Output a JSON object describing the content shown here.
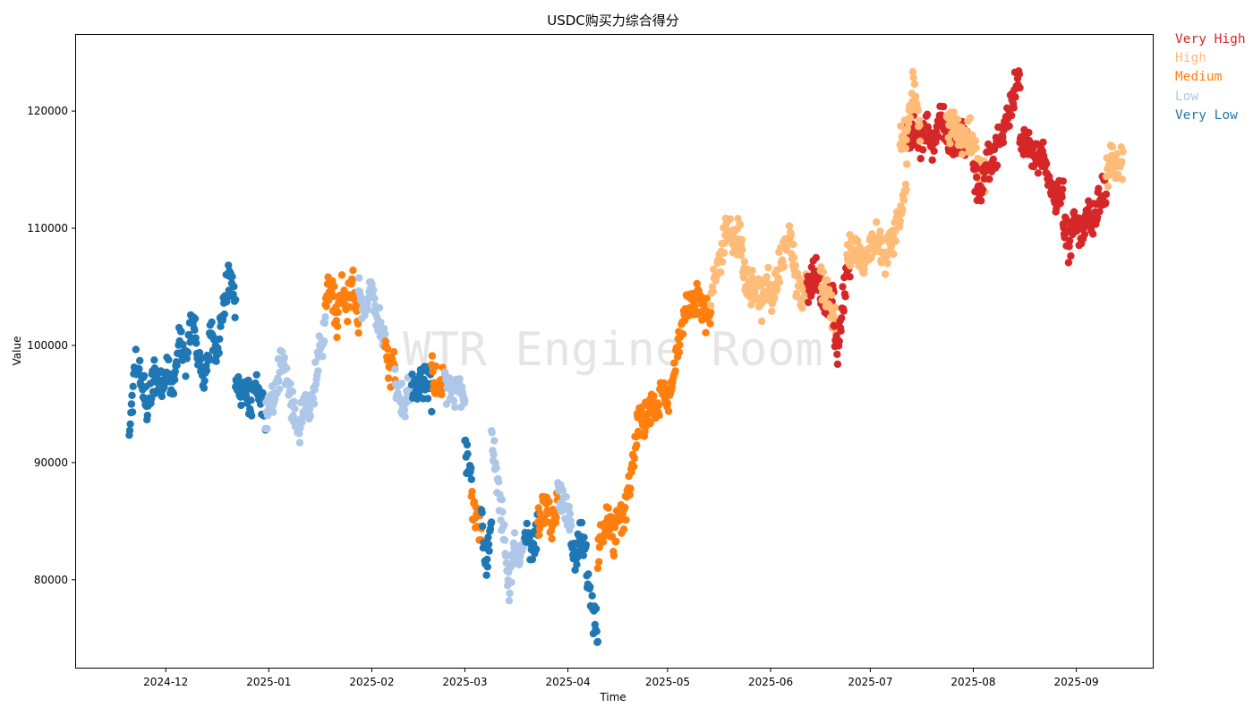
{
  "chart_data": {
    "type": "scatter",
    "title": "USDC购买力综合得分",
    "xlabel": "Time",
    "ylabel": "Value",
    "watermark": "WTR Engine Room",
    "x_range": [
      "2024-11-04",
      "2025-09-24"
    ],
    "ylim": [
      72500,
      126500
    ],
    "x_ticks": [
      "2024-12",
      "2025-01",
      "2025-02",
      "2025-03",
      "2025-04",
      "2025-05",
      "2025-06",
      "2025-07",
      "2025-08",
      "2025-09"
    ],
    "y_ticks": [
      80000,
      90000,
      100000,
      110000,
      120000
    ],
    "legend_position": "outside-top-right",
    "grid": false,
    "series": [
      {
        "name": "Very High",
        "color": "#d62728"
      },
      {
        "name": "High",
        "color": "#ffbb78"
      },
      {
        "name": "Medium",
        "color": "#ff7f0e"
      },
      {
        "name": "Low",
        "color": "#aec7e8"
      },
      {
        "name": "Very Low",
        "color": "#1f77b4"
      }
    ],
    "segments": [
      {
        "start": "2024-11-20",
        "end": "2024-12-22",
        "series": "Very Low",
        "values": [
          92000,
          98500,
          97000,
          94500,
          97500,
          96500,
          98000,
          96000,
          100500,
          98500,
          102500,
          99000,
          97000,
          101000,
          99500,
          103000,
          106000,
          103500
        ]
      },
      {
        "start": "2024-12-22",
        "end": "2024-12-31",
        "series": "Very Low",
        "values": [
          97500,
          95500,
          96500,
          94500,
          96500,
          95500,
          94000
        ]
      },
      {
        "start": "2024-12-31",
        "end": "2025-01-18",
        "series": "Low",
        "values": [
          93500,
          95000,
          96500,
          99000,
          97000,
          94500,
          92500,
          95000,
          94000,
          96500,
          99500,
          101500
        ]
      },
      {
        "start": "2025-01-18",
        "end": "2025-01-28",
        "series": "Medium",
        "values": [
          104000,
          106000,
          102000,
          105000,
          103500,
          105500,
          101500
        ]
      },
      {
        "start": "2025-01-28",
        "end": "2025-02-05",
        "series": "Low",
        "values": [
          104500,
          102500,
          105000,
          102000,
          100500
        ]
      },
      {
        "start": "2025-02-05",
        "end": "2025-02-08",
        "series": "Medium",
        "values": [
          99500,
          98000,
          98500
        ]
      },
      {
        "start": "2025-02-08",
        "end": "2025-02-13",
        "series": "Low",
        "values": [
          97000,
          95000,
          96500
        ]
      },
      {
        "start": "2025-02-13",
        "end": "2025-02-19",
        "series": "Very Low",
        "values": [
          96000,
          96500,
          97000,
          96000
        ]
      },
      {
        "start": "2025-02-19",
        "end": "2025-02-23",
        "series": "Medium",
        "values": [
          97500,
          96500,
          97000
        ]
      },
      {
        "start": "2025-02-23",
        "end": "2025-03-01",
        "series": "Low",
        "values": [
          97000,
          95500,
          96500,
          95000
        ]
      },
      {
        "start": "2025-03-01",
        "end": "2025-03-03",
        "series": "Very Low",
        "values": [
          91000,
          88500
        ]
      },
      {
        "start": "2025-03-03",
        "end": "2025-03-06",
        "series": "Medium",
        "values": [
          86500,
          84500
        ]
      },
      {
        "start": "2025-03-06",
        "end": "2025-03-09",
        "series": "Very Low",
        "values": [
          85000,
          81000,
          84500
        ]
      },
      {
        "start": "2025-03-09",
        "end": "2025-03-19",
        "series": "Low",
        "values": [
          93000,
          88500,
          85000,
          79000,
          83000,
          82000,
          83500
        ]
      },
      {
        "start": "2025-03-19",
        "end": "2025-03-23",
        "series": "Very Low",
        "values": [
          84000,
          83000,
          84500
        ]
      },
      {
        "start": "2025-03-23",
        "end": "2025-03-29",
        "series": "Medium",
        "values": [
          84500,
          86500,
          85000,
          87000
        ]
      },
      {
        "start": "2025-03-29",
        "end": "2025-04-02",
        "series": "Low",
        "values": [
          87500,
          86500,
          84500
        ]
      },
      {
        "start": "2025-04-02",
        "end": "2025-04-10",
        "series": "Very Low",
        "values": [
          83500,
          81500,
          84000,
          83000,
          79000,
          77000,
          75500
        ]
      },
      {
        "start": "2025-04-10",
        "end": "2025-04-23",
        "series": "Medium",
        "values": [
          82000,
          84500,
          85500,
          83500,
          85000,
          86000,
          88000,
          92000,
          94000
        ]
      },
      {
        "start": "2025-04-23",
        "end": "2025-05-09",
        "series": "Medium",
        "values": [
          94000,
          93500,
          95000,
          94500,
          96500,
          95000,
          97000,
          100000,
          102500,
          103500,
          104000
        ]
      },
      {
        "start": "2025-05-09",
        "end": "2025-05-14",
        "series": "Medium",
        "values": [
          103500,
          104500,
          102500,
          103000
        ]
      },
      {
        "start": "2025-05-14",
        "end": "2025-06-12",
        "series": "High",
        "values": [
          104000,
          106000,
          108000,
          110500,
          108500,
          109500,
          106000,
          104500,
          105500,
          103500,
          105500,
          104000,
          106500,
          108000,
          109500,
          105500,
          104500,
          106000
        ]
      },
      {
        "start": "2025-06-12",
        "end": "2025-06-20",
        "series": "Very High",
        "values": [
          104500,
          106500,
          105000,
          103500,
          104500
        ]
      },
      {
        "start": "2025-06-16",
        "end": "2025-06-21",
        "series": "High",
        "values": [
          105500,
          103500,
          102000
        ]
      },
      {
        "start": "2025-06-20",
        "end": "2025-06-25",
        "series": "Very High",
        "values": [
          101500,
          99500,
          103000,
          106000,
          107500
        ]
      },
      {
        "start": "2025-06-24",
        "end": "2025-07-12",
        "series": "High",
        "values": [
          107500,
          108500,
          106500,
          108000,
          109000,
          107500,
          109000,
          110500,
          114000
        ]
      },
      {
        "start": "2025-07-12",
        "end": "2025-07-18",
        "series": "Very High",
        "values": [
          117500,
          118500,
          117500,
          119000
        ]
      },
      {
        "start": "2025-07-10",
        "end": "2025-07-16",
        "series": "High",
        "values": [
          117000,
          118500,
          122000,
          119000
        ]
      },
      {
        "start": "2025-07-18",
        "end": "2025-07-30",
        "series": "Very High",
        "values": [
          118500,
          117000,
          119500,
          118500,
          116500,
          118000,
          117500
        ]
      },
      {
        "start": "2025-07-24",
        "end": "2025-08-05",
        "series": "High",
        "values": [
          118500,
          119000,
          117500,
          118000,
          115500,
          114000
        ]
      },
      {
        "start": "2025-08-01",
        "end": "2025-08-15",
        "series": "Very High",
        "values": [
          114500,
          113000,
          115500,
          116000,
          117500,
          119000,
          121500,
          123000
        ]
      },
      {
        "start": "2025-08-15",
        "end": "2025-08-28",
        "series": "Very High",
        "values": [
          118000,
          117500,
          115500,
          116500,
          114000,
          112500,
          113000
        ]
      },
      {
        "start": "2025-08-28",
        "end": "2025-09-10",
        "series": "Very High",
        "values": [
          110500,
          108500,
          111000,
          109500,
          111500,
          110500,
          112500,
          113500
        ]
      },
      {
        "start": "2025-09-10",
        "end": "2025-09-15",
        "series": "High",
        "values": [
          114500,
          116000,
          115500,
          115500
        ]
      }
    ]
  }
}
